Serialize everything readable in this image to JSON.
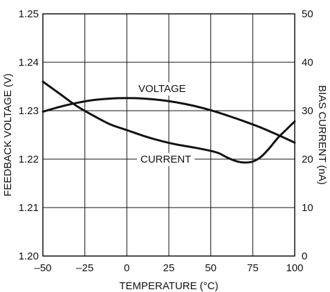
{
  "chart_data": {
    "type": "line",
    "xlabel": "TEMPERATURE (°C)",
    "ylabel_left": "FEEDBACK VOLTAGE (V)",
    "ylabel_right": "BIAS CURRENT (nA)",
    "xlim": [
      -50,
      100
    ],
    "ylim_left": [
      1.2,
      1.25
    ],
    "ylim_right": [
      0,
      50
    ],
    "x_ticks": [
      "–50",
      "–25",
      "0",
      "25",
      "50",
      "75",
      "100"
    ],
    "y_left_ticks": [
      "1.20",
      "1.21",
      "1.22",
      "1.23",
      "1.24",
      "1.25"
    ],
    "y_right_ticks": [
      "0",
      "10",
      "20",
      "30",
      "40",
      "50"
    ],
    "grid": true,
    "series": [
      {
        "name": "VOLTAGE",
        "axis": "left",
        "x": [
          -50,
          -40,
          -30,
          -20,
          -10,
          0,
          10,
          20,
          30,
          40,
          50,
          60,
          70,
          80,
          90,
          100
        ],
        "y": [
          1.2298,
          1.2308,
          1.2316,
          1.2322,
          1.2325,
          1.2326,
          1.2325,
          1.2322,
          1.2317,
          1.231,
          1.2301,
          1.229,
          1.2278,
          1.2265,
          1.225,
          1.2234
        ]
      },
      {
        "name": "CURRENT",
        "axis": "right",
        "x": [
          -50,
          -40,
          -30,
          -20,
          -10,
          0,
          10,
          20,
          30,
          40,
          50,
          55,
          60,
          65,
          70,
          75,
          80,
          85,
          90,
          95,
          100
        ],
        "y": [
          36.0,
          33.5,
          31.0,
          29.0,
          27.2,
          26.0,
          24.8,
          23.8,
          23.0,
          22.4,
          21.7,
          21.2,
          20.3,
          19.6,
          19.3,
          19.5,
          20.5,
          22.3,
          24.4,
          26.1,
          27.8
        ]
      }
    ],
    "annotations": {
      "voltage": "VOLTAGE",
      "current": "CURRENT"
    }
  }
}
